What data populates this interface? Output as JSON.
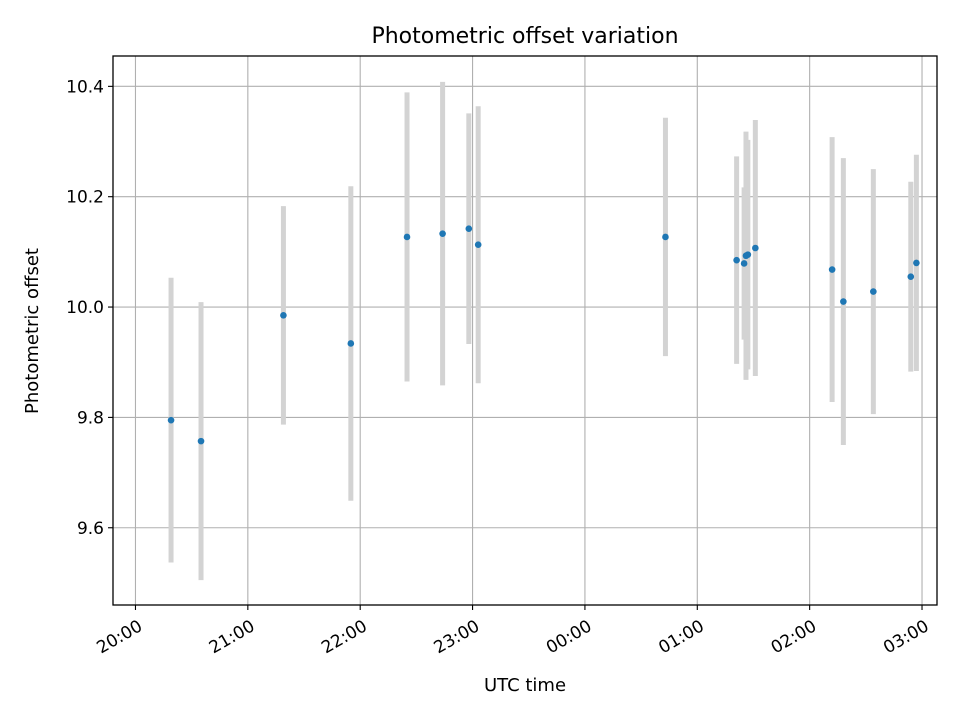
{
  "chart_data": {
    "type": "scatter",
    "title": "Photometric offset variation",
    "xlabel": "UTC time",
    "ylabel": "Photometric offset",
    "xlim_minutes_from_2000": [
      -12,
      428
    ],
    "ylim": [
      9.46,
      10.455
    ],
    "x_ticks": [
      "20:00",
      "21:00",
      "22:00",
      "23:00",
      "00:00",
      "01:00",
      "02:00",
      "03:00"
    ],
    "y_ticks": [
      "9.6",
      "9.8",
      "10.0",
      "10.2",
      "10.4"
    ],
    "y_tick_values": [
      9.6,
      9.8,
      10.0,
      10.2,
      10.4
    ],
    "grid": true,
    "colors": {
      "point": "#1f77b4",
      "errorbar": "#d3d3d3",
      "grid": "#b0b0b0"
    },
    "points": [
      {
        "time": "20:19",
        "y": 9.795,
        "yerr": 0.258
      },
      {
        "time": "20:35",
        "y": 9.757,
        "yerr": 0.252
      },
      {
        "time": "21:19",
        "y": 9.985,
        "yerr": 0.198
      },
      {
        "time": "21:55",
        "y": 9.934,
        "yerr": 0.285
      },
      {
        "time": "22:25",
        "y": 10.127,
        "yerr": 0.262
      },
      {
        "time": "22:44",
        "y": 10.133,
        "yerr": 0.275
      },
      {
        "time": "22:58",
        "y": 10.142,
        "yerr": 0.209
      },
      {
        "time": "23:03",
        "y": 10.113,
        "yerr": 0.251
      },
      {
        "time": "00:43",
        "y": 10.127,
        "yerr": 0.216
      },
      {
        "time": "01:21",
        "y": 10.085,
        "yerr": 0.188
      },
      {
        "time": "01:25",
        "y": 10.079,
        "yerr": 0.138
      },
      {
        "time": "01:26",
        "y": 10.093,
        "yerr": 0.225
      },
      {
        "time": "01:27",
        "y": 10.095,
        "yerr": 0.208
      },
      {
        "time": "01:31",
        "y": 10.107,
        "yerr": 0.232
      },
      {
        "time": "02:12",
        "y": 10.068,
        "yerr": 0.24
      },
      {
        "time": "02:18",
        "y": 10.01,
        "yerr": 0.26
      },
      {
        "time": "02:34",
        "y": 10.028,
        "yerr": 0.222
      },
      {
        "time": "02:54",
        "y": 10.055,
        "yerr": 0.172
      },
      {
        "time": "02:57",
        "y": 10.08,
        "yerr": 0.196
      }
    ]
  }
}
